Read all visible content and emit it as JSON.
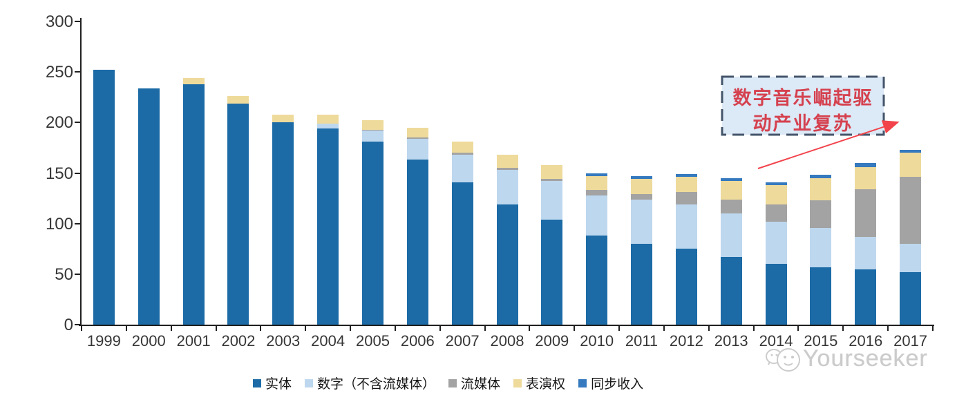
{
  "chart_data": {
    "type": "bar",
    "subtype": "stacked",
    "title": "",
    "categories": [
      "1999",
      "2000",
      "2001",
      "2002",
      "2003",
      "2004",
      "2005",
      "2006",
      "2007",
      "2008",
      "2009",
      "2010",
      "2011",
      "2012",
      "2013",
      "2014",
      "2015",
      "2016",
      "2017"
    ],
    "series": [
      {
        "name": "实体",
        "color": "#1C6BA6",
        "values": [
          252,
          234,
          238,
          219,
          200,
          194,
          181,
          163,
          141,
          119,
          104,
          88,
          80,
          75,
          67,
          60,
          57,
          55,
          52
        ]
      },
      {
        "name": "数字（不含流媒体）",
        "color": "#BDD7EE",
        "values": [
          0,
          0,
          0,
          0,
          0,
          5,
          11,
          21,
          27,
          34,
          38,
          40,
          44,
          44,
          43,
          42,
          39,
          32,
          28
        ]
      },
      {
        "name": "流媒体",
        "color": "#A3A3A3",
        "values": [
          0,
          0,
          0,
          0,
          0,
          0,
          1,
          1,
          2,
          2,
          2,
          5,
          5,
          12,
          14,
          17,
          27,
          47,
          66
        ]
      },
      {
        "name": "表演权",
        "color": "#EEDA9B",
        "values": [
          0,
          0,
          6,
          7,
          8,
          9,
          9,
          10,
          11,
          13,
          14,
          14,
          15,
          15,
          18,
          19,
          22,
          22,
          24
        ]
      },
      {
        "name": "同步收入",
        "color": "#3579BE",
        "values": [
          0,
          0,
          0,
          0,
          0,
          0,
          0,
          0,
          0,
          0,
          0,
          3,
          3,
          3,
          3,
          3,
          3,
          4,
          3
        ]
      }
    ],
    "xlabel": "",
    "ylabel": "",
    "ylim": [
      0,
      300
    ],
    "yticks": [
      0,
      50,
      100,
      150,
      200,
      250,
      300
    ],
    "grid": false,
    "legend_position": "bottom"
  },
  "annotation": {
    "line1": "数字音乐崛起驱",
    "line2": "动产业复苏",
    "text_color": "#D5414F",
    "box_fill": "#DCE9F6",
    "box_border": "#44546A",
    "arrow_color": "#F2434B"
  },
  "watermark": {
    "label": "Yourseeker",
    "logo": "smiley-chat-logo",
    "color": "#CBCBCB"
  }
}
